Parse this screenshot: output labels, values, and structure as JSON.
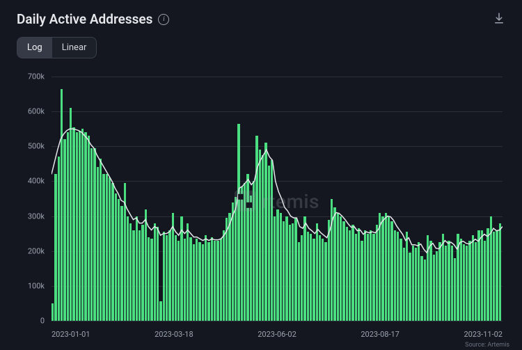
{
  "header": {
    "title": "Daily Active Addresses",
    "info_tooltip": "i",
    "download_label": "Download"
  },
  "scale_toggle": {
    "options": [
      "Log",
      "Linear"
    ],
    "active": "Log"
  },
  "chart": {
    "type": "bar+line",
    "background_color": "#14171f",
    "grid_color": "#2a2e39",
    "bar_color": "#4ade80",
    "line_color": "#e5e7eb",
    "line_width": 1.5,
    "axis_label_color": "#9ca3af",
    "axis_fontsize": 11,
    "y": {
      "min": 0,
      "max": 700000,
      "tick_step": 100000,
      "ticks": [
        "0",
        "100k",
        "200k",
        "300k",
        "400k",
        "500k",
        "600k",
        "700k"
      ]
    },
    "x": {
      "labels": [
        "2023-01-01",
        "2023-03-18",
        "2023-06-02",
        "2023-08-17",
        "2023-11-02"
      ]
    },
    "bars": [
      50,
      420,
      470,
      665,
      520,
      540,
      610,
      555,
      540,
      545,
      550,
      540,
      530,
      495,
      495,
      440,
      465,
      420,
      420,
      410,
      395,
      365,
      350,
      330,
      395,
      300,
      280,
      260,
      300,
      260,
      275,
      320,
      240,
      235,
      280,
      270,
      55,
      255,
      245,
      260,
      310,
      245,
      230,
      300,
      235,
      280,
      240,
      220,
      235,
      225,
      220,
      245,
      225,
      240,
      230,
      230,
      235,
      260,
      295,
      310,
      340,
      355,
      565,
      385,
      395,
      420,
      360,
      400,
      530,
      490,
      475,
      510,
      445,
      460,
      300,
      320,
      310,
      285,
      300,
      275,
      280,
      295,
      225,
      245,
      300,
      255,
      250,
      235,
      280,
      245,
      235,
      225,
      290,
      350,
      325,
      310,
      300,
      285,
      270,
      260,
      275,
      250,
      265,
      230,
      260,
      250,
      260,
      250,
      275,
      310,
      300,
      310,
      300,
      285,
      260,
      255,
      235,
      210,
      255,
      195,
      215,
      210,
      225,
      185,
      175,
      245,
      230,
      190,
      200,
      225,
      250,
      215,
      230,
      215,
      180,
      250,
      235,
      220,
      215,
      230,
      245,
      225,
      260,
      260,
      230,
      265,
      300,
      255,
      260,
      280
    ],
    "line": [
      420,
      455,
      490,
      520,
      535,
      545,
      550,
      550,
      548,
      545,
      540,
      530,
      520,
      505,
      495,
      475,
      460,
      445,
      430,
      415,
      400,
      380,
      365,
      345,
      340,
      320,
      305,
      290,
      295,
      280,
      280,
      290,
      270,
      260,
      270,
      265,
      245,
      250,
      250,
      255,
      270,
      255,
      245,
      260,
      250,
      260,
      250,
      240,
      240,
      235,
      230,
      235,
      230,
      235,
      232,
      232,
      235,
      245,
      260,
      280,
      305,
      325,
      380,
      385,
      395,
      405,
      390,
      400,
      440,
      460,
      475,
      490,
      470,
      460,
      400,
      370,
      350,
      325,
      315,
      300,
      295,
      295,
      270,
      265,
      280,
      265,
      258,
      250,
      262,
      252,
      245,
      238,
      260,
      295,
      310,
      308,
      300,
      290,
      278,
      268,
      270,
      258,
      260,
      248,
      255,
      252,
      255,
      252,
      262,
      282,
      292,
      300,
      298,
      288,
      272,
      260,
      248,
      230,
      238,
      218,
      218,
      215,
      220,
      205,
      195,
      215,
      222,
      208,
      206,
      218,
      230,
      222,
      225,
      218,
      205,
      225,
      228,
      222,
      220,
      226,
      234,
      228,
      240,
      248,
      242,
      250,
      265,
      258,
      260,
      270
    ]
  },
  "watermark": {
    "text": "rtemis"
  },
  "footer": {
    "source": "Source: Artemis"
  }
}
